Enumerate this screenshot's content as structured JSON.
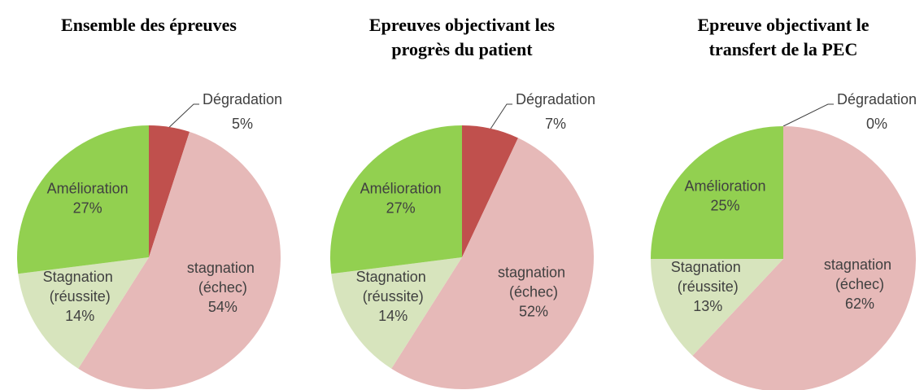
{
  "chart_data": [
    {
      "type": "pie",
      "title": [
        "Ensemble des épreuves"
      ],
      "categories": [
        "Dégradation",
        "stagnation (échec)",
        "Stagnation (réussite)",
        "Amélioration"
      ],
      "values": [
        5,
        54,
        14,
        27
      ],
      "value_labels": [
        "5%",
        "54%",
        "14%",
        "27%"
      ],
      "colors": [
        "#c0504d",
        "#e6b9b8",
        "#d7e4bd",
        "#92d050"
      ]
    },
    {
      "type": "pie",
      "title": [
        "Epreuves objectivant les",
        "progrès du patient"
      ],
      "categories": [
        "Dégradation",
        "stagnation (échec)",
        "Stagnation (réussite)",
        "Amélioration"
      ],
      "values": [
        7,
        52,
        14,
        27
      ],
      "value_labels": [
        "7%",
        "52%",
        "14%",
        "27%"
      ],
      "colors": [
        "#c0504d",
        "#e6b9b8",
        "#d7e4bd",
        "#92d050"
      ]
    },
    {
      "type": "pie",
      "title": [
        "Epreuve objectivant le",
        "transfert de la PEC"
      ],
      "categories": [
        "Dégradation",
        "stagnation (échec)",
        "Stagnation (réussite)",
        "Amélioration"
      ],
      "values": [
        0,
        62,
        13,
        25
      ],
      "value_labels": [
        "0%",
        "62%",
        "13%",
        "25%"
      ],
      "colors": [
        "#c0504d",
        "#e6b9b8",
        "#d7e4bd",
        "#92d050"
      ]
    }
  ]
}
